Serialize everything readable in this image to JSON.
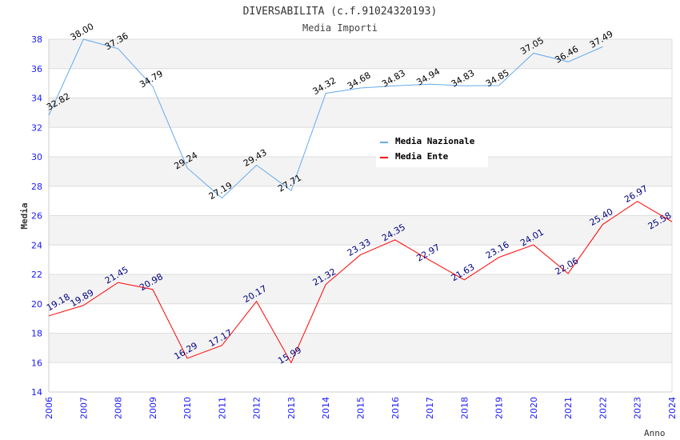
{
  "chart_data": {
    "type": "line",
    "title": "DIVERSABILITA (c.f.91024320193)",
    "subtitle": "Media Importi",
    "xlabel": "Anno",
    "ylabel": "Media",
    "ylim": [
      14,
      38
    ],
    "yticks": [
      "14",
      "16",
      "18",
      "20",
      "22",
      "24",
      "26",
      "28",
      "30",
      "32",
      "34",
      "36",
      "38"
    ],
    "grid": true,
    "legend_position": "top-right",
    "x": [
      "2006",
      "2007",
      "2008",
      "2009",
      "2010",
      "2011",
      "2012",
      "2013",
      "2014",
      "2015",
      "2016",
      "2017",
      "2018",
      "2019",
      "2020",
      "2021",
      "2022",
      "2023",
      "2024"
    ],
    "series": [
      {
        "name": "Media Nazionale",
        "color": "#66aaee",
        "label_color": "#000000",
        "values": [
          32.82,
          38.0,
          37.36,
          34.79,
          29.24,
          27.19,
          29.43,
          27.71,
          34.32,
          34.68,
          34.83,
          34.94,
          34.83,
          34.85,
          37.05,
          36.46,
          37.49,
          null,
          null
        ]
      },
      {
        "name": "Media Ente",
        "color": "#ff0000",
        "label_color": "#000080",
        "values": [
          19.18,
          19.89,
          21.45,
          20.98,
          16.29,
          17.17,
          20.17,
          15.99,
          21.32,
          23.33,
          24.35,
          22.97,
          21.63,
          23.16,
          24.01,
          22.06,
          25.4,
          26.97,
          25.58
        ]
      }
    ]
  }
}
